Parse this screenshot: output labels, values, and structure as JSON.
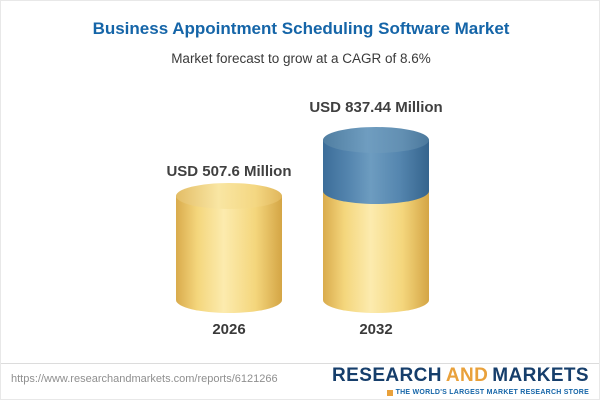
{
  "chart_data": {
    "type": "bar",
    "bar_style": "3d-cylinder",
    "title": "Business Appointment Scheduling Software Market",
    "subtitle": "Market forecast to grow at a CAGR of 8.6%",
    "categories": [
      "2026",
      "2032"
    ],
    "values": [
      507.6,
      837.44
    ],
    "value_labels": [
      "USD 507.6 Million",
      "USD 837.44 Million"
    ],
    "unit": "USD Million",
    "cagr": "8.6%",
    "ylim": [
      0,
      900
    ],
    "grid": "off",
    "legend": "none",
    "colors": {
      "base_segment": "#f4d67c",
      "growth_segment": "#5586af"
    },
    "notes": "2032 bar is two-tone: yellow base approximately equal to 2026 value, blue top segment representing growth to 837.44"
  },
  "footer": {
    "url": "https://www.researchandmarkets.com/reports/6121266",
    "logo": {
      "word1": "RESEARCH",
      "word2": "AND",
      "word3": "MARKETS",
      "tagline": "THE WORLD'S LARGEST MARKET RESEARCH STORE"
    }
  },
  "colors": {
    "title_blue": "#1565a8",
    "text_dark": "#3a3a3a",
    "logo_navy": "#163e6b",
    "logo_gold": "#e9a13b"
  }
}
